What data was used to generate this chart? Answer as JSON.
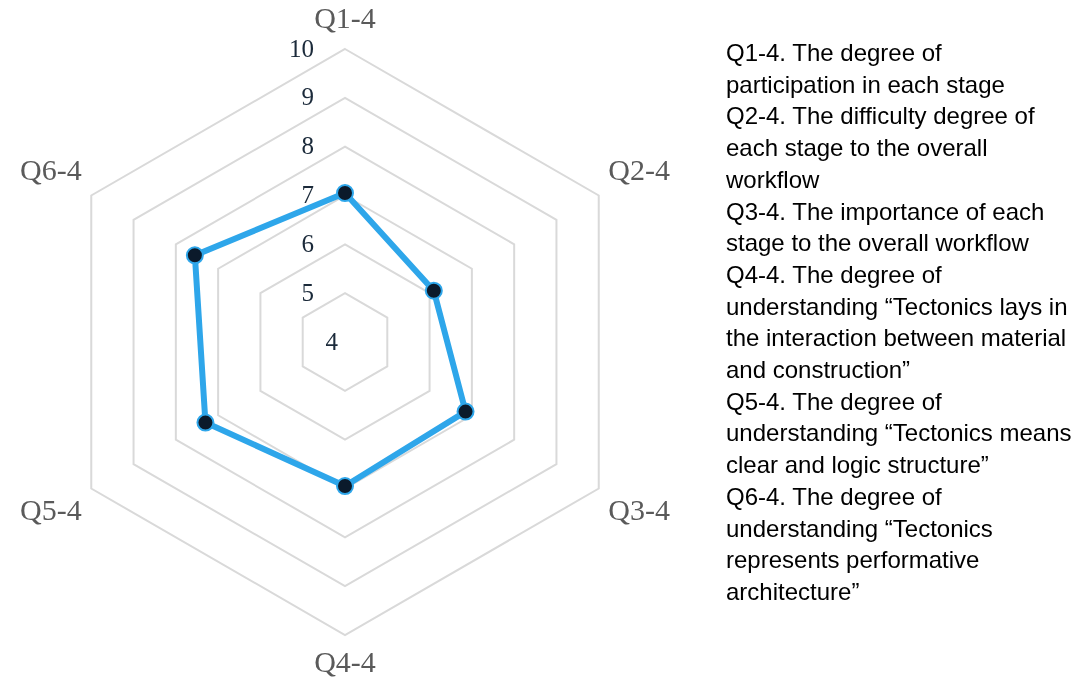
{
  "chart_data": {
    "type": "radar",
    "categories": [
      "Q1-4",
      "Q2-4",
      "Q3-4",
      "Q4-4",
      "Q5-4",
      "Q6-4"
    ],
    "series": [
      {
        "color": "#2ea6ea",
        "values": [
          7.05,
          6.1,
          6.85,
          6.95,
          7.3,
          7.55
        ]
      }
    ],
    "ylim": [
      4,
      10
    ],
    "yticks": [
      4,
      5,
      6,
      7,
      8,
      9,
      10
    ],
    "grid": true,
    "marker": "circle",
    "annotations": [
      "Q1-4. The degree of participation in each stage",
      "Q2-4. The difficulty degree of each stage to the overall workflow",
      "Q3-4. The importance of each stage to the overall workflow",
      "Q4-4. The degree of understanding “Tectonics lays in the interaction between material and construction”",
      "Q5-4. The degree of understanding “Tectonics means clear and logic structure”",
      "Q6-4. The degree of understanding “Tectonics represents performative architecture”"
    ]
  }
}
